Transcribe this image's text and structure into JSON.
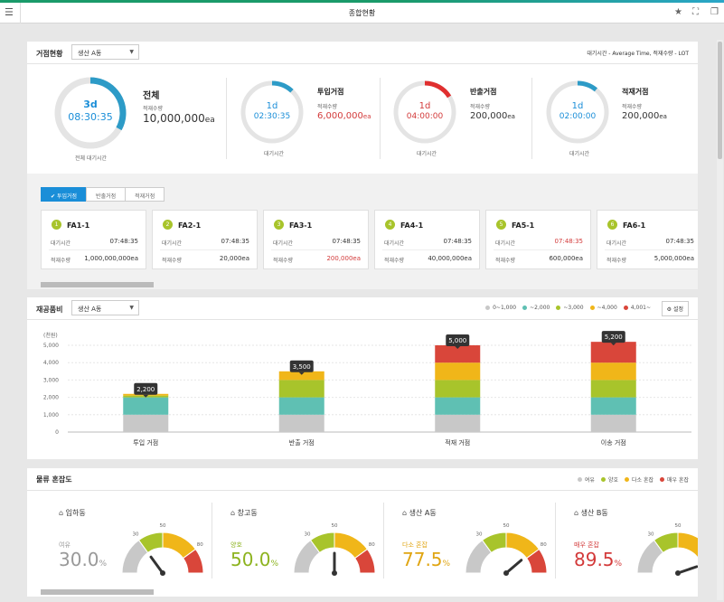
{
  "header": {
    "title": "종합현황",
    "menu_icon": "menu-icon",
    "icons": [
      "star-icon",
      "expand-icon",
      "window-icon"
    ]
  },
  "colors": {
    "accent": "#1a8ed8",
    "teal_ring": "#2d9bc7",
    "red": "#d33a3a",
    "green": "#a8c42b",
    "yellow": "#f0b619",
    "gray": "#c8c8c8",
    "teal": "#5fc0b3"
  },
  "site": {
    "title": "거점현황",
    "select": "생산 A동",
    "note": "대기시간 - Average Time, 적재수량 - LOT",
    "total": {
      "ring_days": "3d",
      "ring_time": "08:30:35",
      "ring_caption": "전체 대기시간",
      "title": "전체",
      "qty_label": "적재수량",
      "qty": "10,000,000",
      "unit": "ea",
      "progress": 0.33
    },
    "items": [
      {
        "title": "투입거점",
        "ring_days": "1d",
        "ring_time": "02:30:35",
        "caption": "대기시간",
        "qty_label": "적재수량",
        "qty": "6,000,000",
        "unit": "ea",
        "qty_alert": true,
        "ring_alert": false,
        "progress": 0.12
      },
      {
        "title": "반출거점",
        "ring_days": "1d",
        "ring_time": "04:00:00",
        "caption": "대기시간",
        "qty_label": "적재수량",
        "qty": "200,000",
        "unit": "ea",
        "qty_alert": false,
        "ring_alert": true,
        "progress": 0.16
      },
      {
        "title": "적재거점",
        "ring_days": "1d",
        "ring_time": "02:00:00",
        "caption": "대기시간",
        "qty_label": "적재수량",
        "qty": "200,000",
        "unit": "ea",
        "qty_alert": false,
        "ring_alert": false,
        "progress": 0.11
      }
    ]
  },
  "point_tabs": [
    {
      "label": "투입거점",
      "check": "✔",
      "active": true
    },
    {
      "label": "반출거점",
      "active": false
    },
    {
      "label": "적재거점",
      "active": false
    }
  ],
  "point_cards": [
    {
      "num": "1",
      "name": "FA1-1",
      "wait_label": "대기시간",
      "wait": "07:48:35",
      "qty_label": "적재수량",
      "qty": "1,000,000,000ea",
      "wait_alert": false,
      "qty_alert": false
    },
    {
      "num": "2",
      "name": "FA2-1",
      "wait_label": "대기시간",
      "wait": "07:48:35",
      "qty_label": "적재수량",
      "qty": "20,000ea",
      "wait_alert": false,
      "qty_alert": false
    },
    {
      "num": "3",
      "name": "FA3-1",
      "wait_label": "대기시간",
      "wait": "07:48:35",
      "qty_label": "적재수량",
      "qty": "200,000ea",
      "wait_alert": false,
      "qty_alert": true
    },
    {
      "num": "4",
      "name": "FA4-1",
      "wait_label": "대기시간",
      "wait": "07:48:35",
      "qty_label": "적재수량",
      "qty": "40,000,000ea",
      "wait_alert": false,
      "qty_alert": false
    },
    {
      "num": "5",
      "name": "FA5-1",
      "wait_label": "대기시간",
      "wait": "07:48:35",
      "qty_label": "적재수량",
      "qty": "600,000ea",
      "wait_alert": true,
      "qty_alert": false
    },
    {
      "num": "6",
      "name": "FA6-1",
      "wait_label": "대기시간",
      "wait": "07:48:35",
      "qty_label": "적재수량",
      "qty": "5,000,000ea",
      "wait_alert": false,
      "qty_alert": false
    }
  ],
  "wip": {
    "title": "재공품비",
    "select": "생산 A동",
    "settings_label": "설정",
    "legend": [
      {
        "label": "0~1,000",
        "color": "#c8c8c8"
      },
      {
        "label": "~2,000",
        "color": "#5fc0b3"
      },
      {
        "label": "~3,000",
        "color": "#a8c42b"
      },
      {
        "label": "~4,000",
        "color": "#f0b619"
      },
      {
        "label": "4,001~",
        "color": "#d9463a"
      }
    ]
  },
  "chart_data": {
    "type": "bar",
    "stacked": true,
    "ylabel": "(천원)",
    "ylim": [
      0,
      5000
    ],
    "yticks": [
      "0",
      "1,000",
      "2,000",
      "3,000",
      "4,000",
      "5,000"
    ],
    "yticks_values": [
      0,
      1000,
      2000,
      3000,
      4000,
      5000
    ],
    "categories": [
      "투입 거점",
      "반출 거점",
      "적재 거점",
      "이송 거점"
    ],
    "totals": [
      2200,
      3500,
      5000,
      5200
    ],
    "total_labels": [
      "2,200",
      "3,500",
      "5,000",
      "5,200"
    ],
    "series": [
      {
        "name": "0~1,000",
        "values": [
          1000,
          1000,
          1000,
          1000
        ]
      },
      {
        "name": "~2,000",
        "values": [
          1000,
          1000,
          1000,
          1000
        ]
      },
      {
        "name": "~3,000",
        "values": [
          100,
          1000,
          1000,
          1000
        ]
      },
      {
        "name": "~4,000",
        "values": [
          100,
          500,
          1000,
          1000
        ]
      },
      {
        "name": "4,001~",
        "values": [
          0,
          0,
          1000,
          1200
        ]
      }
    ]
  },
  "congestion": {
    "title": "물류 혼잡도",
    "legend": [
      {
        "label": "여유",
        "color": "#c8c8c8"
      },
      {
        "label": "양호",
        "color": "#a8c42b"
      },
      {
        "label": "다소 혼잡",
        "color": "#f0b619"
      },
      {
        "label": "매우 혼잡",
        "color": "#d9463a"
      }
    ],
    "gauge_ticks": [
      "30",
      "50",
      "80"
    ],
    "items": [
      {
        "name": "입하동",
        "status": "여유",
        "value": "30.0",
        "unit": "%",
        "percent": 30.0,
        "color": "#999999"
      },
      {
        "name": "창고동",
        "status": "양호",
        "value": "50.0",
        "unit": "%",
        "percent": 50.0,
        "color": "#8db31f"
      },
      {
        "name": "생산 A동",
        "status": "다소 혼잡",
        "value": "77.5",
        "unit": "%",
        "percent": 77.5,
        "color": "#e0a512"
      },
      {
        "name": "생산 B동",
        "status": "매우 혼잡",
        "value": "89.5",
        "unit": "%",
        "percent": 89.5,
        "color": "#d33a3a"
      }
    ]
  }
}
